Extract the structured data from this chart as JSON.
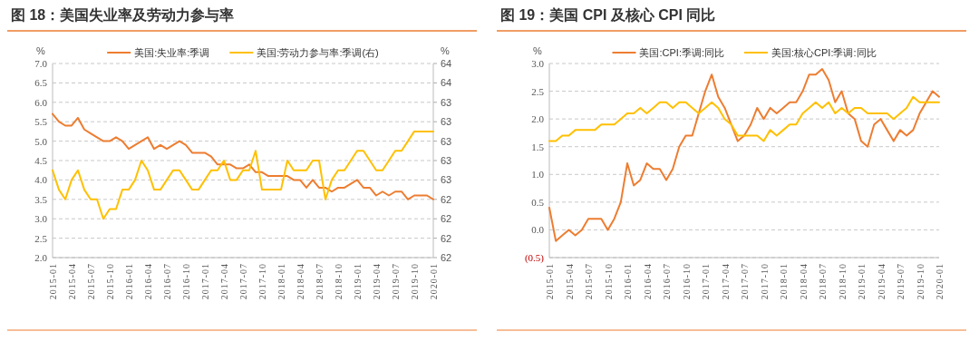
{
  "chart_data": [
    {
      "type": "line",
      "title": "图 18：美国失业率及劳动力参与率",
      "ylabel": "%",
      "y2label": "%",
      "legend": "top",
      "grid": "y",
      "categories": [
        "2015-01",
        null,
        null,
        "2015-04",
        null,
        null,
        "2015-07",
        null,
        null,
        "2015-10",
        null,
        null,
        "2016-01",
        null,
        null,
        "2016-04",
        null,
        null,
        "2016-07",
        null,
        null,
        "2016-10",
        null,
        null,
        "2017-01",
        null,
        null,
        "2017-04",
        null,
        null,
        "2017-07",
        null,
        null,
        "2017-10",
        null,
        null,
        "2018-01",
        null,
        null,
        "2018-04",
        null,
        null,
        "2018-07",
        null,
        null,
        "2018-10",
        null,
        null,
        "2019-01",
        null,
        null,
        "2019-04",
        null,
        null,
        "2019-07",
        null,
        null,
        "2019-10",
        null,
        null,
        "2020-01"
      ],
      "ylim": [
        2,
        7
      ],
      "yticks": [
        {
          "value": 2,
          "label": "2.0"
        },
        2.5,
        {
          "value": 3,
          "label": "3.0"
        },
        3.5,
        {
          "value": 4,
          "label": "4.0"
        },
        4.5,
        {
          "value": 5,
          "label": "5.0"
        },
        5.5,
        {
          "value": 6,
          "label": "6.0"
        },
        6.5,
        {
          "value": 7,
          "label": "7.0"
        }
      ],
      "y2lim": [
        61.7,
        63.7
      ],
      "y2ticks": [
        {
          "value": 61.7,
          "label": "62"
        },
        {
          "value": 61.9,
          "label": "62"
        },
        {
          "value": 62.1,
          "label": "62"
        },
        {
          "value": 62.3,
          "label": "62"
        },
        {
          "value": 62.5,
          "label": "63"
        },
        {
          "value": 62.7,
          "label": "63"
        },
        {
          "value": 62.9,
          "label": "63"
        },
        {
          "value": 63.1,
          "label": "63"
        },
        {
          "value": 63.3,
          "label": "63"
        },
        {
          "value": 63.5,
          "label": "64"
        },
        {
          "value": 63.7,
          "label": "64"
        }
      ],
      "series": [
        {
          "name": "美国:失业率:季调",
          "color": "#ed7d31",
          "values": [
            5.7,
            5.5,
            5.4,
            5.4,
            5.6,
            5.3,
            5.2,
            5.1,
            5.0,
            5.0,
            5.1,
            5.0,
            4.8,
            4.9,
            5.0,
            5.1,
            4.8,
            4.9,
            4.8,
            4.9,
            5.0,
            4.9,
            4.7,
            4.7,
            4.7,
            4.6,
            4.4,
            4.4,
            4.4,
            4.3,
            4.3,
            4.4,
            4.2,
            4.2,
            4.1,
            4.1,
            4.1,
            4.1,
            4.0,
            4.0,
            3.8,
            4.0,
            3.8,
            3.8,
            3.7,
            3.8,
            3.8,
            3.9,
            4.0,
            3.8,
            3.8,
            3.6,
            3.7,
            3.6,
            3.7,
            3.7,
            3.5,
            3.6,
            3.6,
            3.6,
            3.5
          ]
        },
        {
          "name": "美国:劳动力参与率:季调(右)",
          "color": "#ffc000",
          "axis": "y2",
          "values": [
            62.6,
            62.4,
            62.3,
            62.5,
            62.6,
            62.4,
            62.3,
            62.3,
            62.1,
            62.2,
            62.2,
            62.4,
            62.4,
            62.5,
            62.7,
            62.6,
            62.4,
            62.4,
            62.5,
            62.6,
            62.6,
            62.5,
            62.4,
            62.4,
            62.5,
            62.6,
            62.6,
            62.7,
            62.5,
            62.5,
            62.6,
            62.6,
            62.8,
            62.4,
            62.4,
            62.4,
            62.4,
            62.7,
            62.6,
            62.6,
            62.6,
            62.7,
            62.7,
            62.3,
            62.5,
            62.6,
            62.6,
            62.7,
            62.8,
            62.8,
            62.7,
            62.6,
            62.6,
            62.7,
            62.8,
            62.8,
            62.9,
            63.0,
            63.0,
            63.0,
            63.0
          ]
        }
      ]
    },
    {
      "type": "line",
      "title": "图 19：美国 CPI 及核心 CPI 同比",
      "ylabel": "%",
      "legend": "top",
      "grid": "y",
      "categories": [
        "2015-01",
        null,
        null,
        "2015-04",
        null,
        null,
        "2015-07",
        null,
        null,
        "2015-10",
        null,
        null,
        "2016-01",
        null,
        null,
        "2016-04",
        null,
        null,
        "2016-07",
        null,
        null,
        "2016-10",
        null,
        null,
        "2017-01",
        null,
        null,
        "2017-04",
        null,
        null,
        "2017-07",
        null,
        null,
        "2017-10",
        null,
        null,
        "2018-01",
        null,
        null,
        "2018-04",
        null,
        null,
        "2018-07",
        null,
        null,
        "2018-10",
        null,
        null,
        "2019-01",
        null,
        null,
        "2019-04",
        null,
        null,
        "2019-07",
        null,
        null,
        "2019-10",
        null,
        null,
        "2020-01"
      ],
      "ylim": [
        -0.5,
        3
      ],
      "yticks": [
        {
          "value": -0.5,
          "label": "(0.5)"
        },
        {
          "value": 0,
          "label": "0.0"
        },
        0.5,
        {
          "value": 1,
          "label": "1.0"
        },
        1.5,
        {
          "value": 2,
          "label": "2.0"
        },
        2.5,
        {
          "value": 3,
          "label": "3.0"
        }
      ],
      "series": [
        {
          "name": "美国:CPI:季调:同比",
          "color": "#ed7d31",
          "values": [
            0.4,
            -0.2,
            -0.1,
            0.0,
            -0.1,
            0.0,
            0.2,
            0.2,
            0.2,
            0.0,
            0.2,
            0.5,
            1.2,
            0.8,
            0.9,
            1.2,
            1.1,
            1.1,
            0.9,
            1.1,
            1.5,
            1.7,
            1.7,
            2.1,
            2.5,
            2.8,
            2.4,
            2.2,
            1.9,
            1.6,
            1.7,
            1.9,
            2.2,
            2.0,
            2.2,
            2.1,
            2.2,
            2.3,
            2.3,
            2.5,
            2.8,
            2.8,
            2.9,
            2.7,
            2.3,
            2.5,
            2.1,
            2.0,
            1.6,
            1.5,
            1.9,
            2.0,
            1.8,
            1.6,
            1.8,
            1.7,
            1.8,
            2.1,
            2.3,
            2.5,
            2.4
          ]
        },
        {
          "name": "美国:核心CPI:季调:同比",
          "color": "#ffc000",
          "values": [
            1.6,
            1.6,
            1.7,
            1.7,
            1.8,
            1.8,
            1.8,
            1.8,
            1.9,
            1.9,
            1.9,
            2.0,
            2.1,
            2.1,
            2.2,
            2.1,
            2.2,
            2.3,
            2.3,
            2.2,
            2.3,
            2.3,
            2.2,
            2.1,
            2.2,
            2.3,
            2.2,
            2.0,
            1.9,
            1.7,
            1.7,
            1.7,
            1.7,
            1.6,
            1.8,
            1.7,
            1.8,
            1.9,
            1.9,
            2.1,
            2.2,
            2.3,
            2.2,
            2.3,
            2.1,
            2.2,
            2.1,
            2.2,
            2.2,
            2.1,
            2.1,
            2.1,
            2.1,
            2.0,
            2.1,
            2.2,
            2.4,
            2.3,
            2.3,
            2.3,
            2.3
          ]
        }
      ]
    }
  ]
}
